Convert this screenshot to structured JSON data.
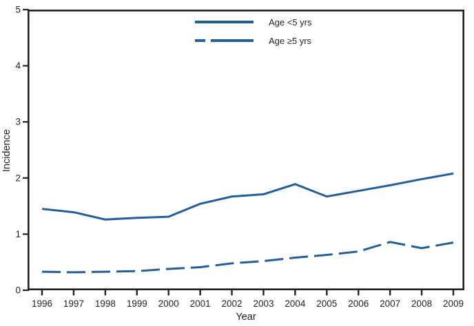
{
  "figure": {
    "ylabel": "Incidence",
    "xlabel": "Year"
  },
  "legend": {
    "items": [
      {
        "label": "Age <5 yrs",
        "line_style": "solid"
      },
      {
        "label": "Age ≥5 yrs",
        "line_style": "dashed"
      }
    ]
  },
  "colors": {
    "series_line": "#1f5f9f",
    "axis": "#231f20",
    "text": "#231f20"
  },
  "chart_data": {
    "type": "line",
    "title": "",
    "xlabel": "Year",
    "ylabel": "Incidence",
    "x": [
      1996,
      1997,
      1998,
      1999,
      2000,
      2001,
      2002,
      2003,
      2004,
      2005,
      2006,
      2007,
      2008,
      2009
    ],
    "series": [
      {
        "name": "Age <5 yrs",
        "style": "solid",
        "values": [
          1.45,
          1.39,
          1.26,
          1.29,
          1.31,
          1.54,
          1.67,
          1.71,
          1.89,
          1.67,
          1.77,
          1.87,
          1.98,
          2.08
        ]
      },
      {
        "name": "Age ≥5 yrs",
        "style": "dashed",
        "values": [
          0.33,
          0.32,
          0.33,
          0.34,
          0.38,
          0.41,
          0.48,
          0.52,
          0.58,
          0.63,
          0.69,
          0.86,
          0.75,
          0.85
        ]
      }
    ],
    "ylim": [
      0,
      5
    ],
    "yticks": [
      0,
      1,
      2,
      3,
      4,
      5
    ],
    "grid": false,
    "frame": true,
    "legend_position": "top-center-inside"
  }
}
